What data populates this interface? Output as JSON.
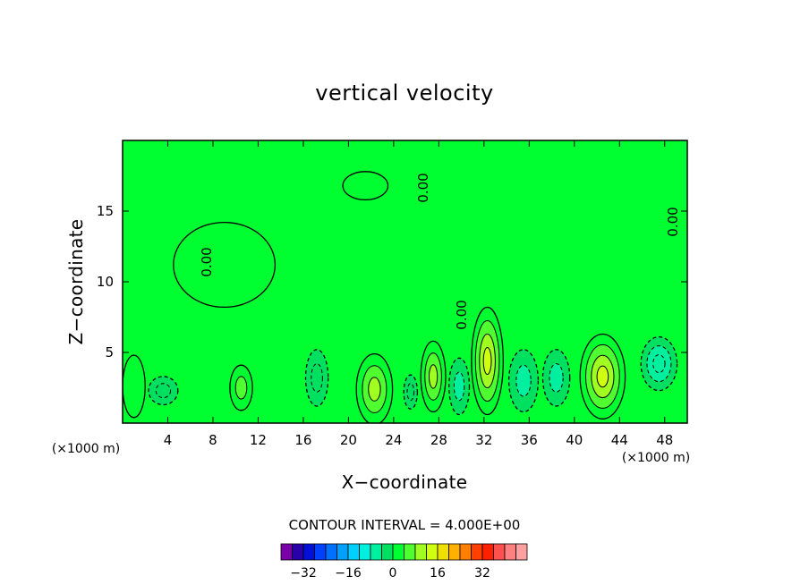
{
  "chart_data": {
    "type": "heatmap",
    "title": "vertical velocity",
    "xlabel": "X−coordinate",
    "ylabel": "Z−coordinate",
    "x_unit_left": "(×1000 m)",
    "x_unit_right": "(×1000 m)",
    "xlim": [
      0,
      50
    ],
    "ylim": [
      0,
      20
    ],
    "x_ticks": [
      4,
      8,
      12,
      16,
      20,
      24,
      28,
      32,
      36,
      40,
      44,
      48
    ],
    "y_ticks": [
      5,
      10,
      15
    ],
    "contour_interval_text": "CONTOUR INTERVAL = 4.000E+00",
    "contour_label": "0.00",
    "background_value": 0,
    "blobs": [
      {
        "x": 1.0,
        "z": 2.6,
        "rx": 1.0,
        "rz": 2.2,
        "value": 3
      },
      {
        "x": 3.6,
        "z": 2.3,
        "rx": 1.3,
        "rz": 1.0,
        "value": -4
      },
      {
        "x": 9.0,
        "z": 11.2,
        "rx": 4.5,
        "rz": 3.0,
        "value": 1.5
      },
      {
        "x": 10.5,
        "z": 2.5,
        "rx": 1.0,
        "rz": 1.6,
        "value": 5
      },
      {
        "x": 17.2,
        "z": 3.2,
        "rx": 1.0,
        "rz": 2.0,
        "value": -4
      },
      {
        "x": 22.3,
        "z": 2.4,
        "rx": 1.6,
        "rz": 2.5,
        "value": 11
      },
      {
        "x": 25.5,
        "z": 2.2,
        "rx": 0.6,
        "rz": 1.2,
        "value": -4
      },
      {
        "x": 27.5,
        "z": 3.3,
        "rx": 1.1,
        "rz": 2.5,
        "value": 8
      },
      {
        "x": 29.8,
        "z": 2.6,
        "rx": 0.9,
        "rz": 2.0,
        "value": -5
      },
      {
        "x": 32.3,
        "z": 4.4,
        "rx": 1.4,
        "rz": 3.8,
        "value": 14
      },
      {
        "x": 35.5,
        "z": 3.0,
        "rx": 1.3,
        "rz": 2.2,
        "value": -6
      },
      {
        "x": 38.4,
        "z": 3.2,
        "rx": 1.2,
        "rz": 2.0,
        "value": -5
      },
      {
        "x": 42.5,
        "z": 3.3,
        "rx": 2.0,
        "rz": 3.0,
        "value": 12
      },
      {
        "x": 47.5,
        "z": 4.2,
        "rx": 1.6,
        "rz": 1.9,
        "value": -8
      },
      {
        "x": 21.5,
        "z": 16.8,
        "rx": 2.0,
        "rz": 1.0,
        "value": 2
      }
    ],
    "colorbar": {
      "colors": [
        "#7a00a8",
        "#2a00aa",
        "#0010d8",
        "#0040ff",
        "#0070ff",
        "#00a0ff",
        "#00d0ff",
        "#00f0e0",
        "#00f0a0",
        "#00e060",
        "#00ff30",
        "#50ff30",
        "#a0ff20",
        "#d0ff10",
        "#f0e000",
        "#ffb000",
        "#ff8000",
        "#ff4000",
        "#ff2000",
        "#ff5050",
        "#ff8080",
        "#ffa0a0"
      ],
      "tick_labels": [
        "−32",
        "−16",
        "0",
        "16",
        "32"
      ],
      "tick_values": [
        -32,
        -16,
        0,
        16,
        32
      ],
      "vmin": -40,
      "vmax": 48
    }
  }
}
